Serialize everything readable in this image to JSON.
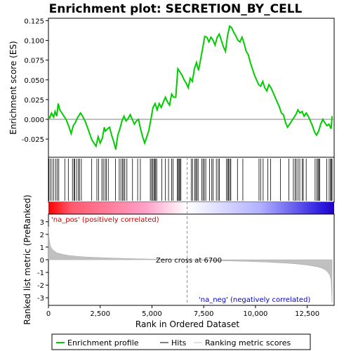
{
  "chart_data": {
    "type": "line",
    "title": "Enrichment plot: SECRETION_BY_CELL",
    "es_panel": {
      "ylabel": "Enrichment score (ES)",
      "ylim": [
        -0.048,
        0.128
      ],
      "yticks": [
        -0.025,
        0.0,
        0.025,
        0.05,
        0.075,
        0.1,
        0.125
      ],
      "ytick_labels": [
        "-0.025",
        "0.000",
        "0.025",
        "0.050",
        "0.075",
        "0.100",
        "0.125"
      ],
      "line_color": "#00cc00",
      "series": [
        {
          "name": "Enrichment profile",
          "x": [
            0,
            60,
            150,
            250,
            320,
            400,
            470,
            550,
            700,
            850,
            1000,
            1100,
            1200,
            1300,
            1400,
            1550,
            1650,
            1800,
            1950,
            2100,
            2200,
            2300,
            2400,
            2500,
            2600,
            2700,
            2750,
            2850,
            2950,
            3050,
            3150,
            3250,
            3350,
            3450,
            3550,
            3650,
            3750,
            3850,
            3950,
            4050,
            4150,
            4250,
            4350,
            4450,
            4550,
            4650,
            4750,
            4850,
            4950,
            5050,
            5150,
            5250,
            5350,
            5450,
            5550,
            5650,
            5750,
            5850,
            5950,
            6050,
            6150,
            6250,
            6350,
            6450,
            6550,
            6650,
            6750,
            6850,
            6950,
            7050,
            7150,
            7250,
            7350,
            7450,
            7550,
            7650,
            7750,
            7850,
            7950,
            8050,
            8150,
            8250,
            8350,
            8450,
            8550,
            8650,
            8750,
            8850,
            8950,
            9050,
            9150,
            9250,
            9350,
            9450,
            9550,
            9650,
            9750,
            9850,
            9950,
            10050,
            10150,
            10250,
            10350,
            10450,
            10550,
            10650,
            10750,
            10850,
            10950,
            11050,
            11150,
            11250,
            11350,
            11450,
            11550,
            11650,
            11750,
            11850,
            11950,
            12050,
            12150,
            12250,
            12350,
            12450,
            12550,
            12650,
            12750,
            12850,
            12950,
            13050,
            13150,
            13250,
            13350,
            13450,
            13550,
            13650,
            13700
          ],
          "y": [
            0.004,
            0.002,
            0.008,
            0.003,
            0.01,
            0.004,
            0.02,
            0.012,
            0.006,
            0.0,
            -0.01,
            -0.018,
            -0.008,
            -0.004,
            0.002,
            0.008,
            0.004,
            -0.004,
            -0.015,
            -0.026,
            -0.03,
            -0.034,
            -0.022,
            -0.03,
            -0.024,
            -0.01,
            -0.015,
            -0.012,
            -0.01,
            -0.02,
            -0.028,
            -0.038,
            -0.02,
            -0.012,
            -0.002,
            0.004,
            -0.002,
            0.001,
            0.006,
            0.0,
            -0.006,
            -0.002,
            0.0,
            -0.012,
            -0.022,
            -0.03,
            -0.022,
            -0.014,
            0.0,
            0.015,
            0.02,
            0.012,
            0.02,
            0.015,
            0.022,
            0.028,
            0.022,
            0.018,
            0.032,
            0.028,
            0.028,
            0.064,
            0.06,
            0.056,
            0.05,
            0.046,
            0.04,
            0.052,
            0.048,
            0.064,
            0.072,
            0.062,
            0.076,
            0.09,
            0.105,
            0.104,
            0.098,
            0.104,
            0.1,
            0.094,
            0.104,
            0.108,
            0.1,
            0.092,
            0.086,
            0.106,
            0.118,
            0.116,
            0.11,
            0.106,
            0.1,
            0.098,
            0.104,
            0.096,
            0.086,
            0.082,
            0.072,
            0.064,
            0.056,
            0.05,
            0.044,
            0.042,
            0.048,
            0.04,
            0.036,
            0.044,
            0.04,
            0.034,
            0.028,
            0.022,
            0.016,
            0.008,
            0.006,
            -0.004,
            -0.01,
            -0.006,
            -0.002,
            0.002,
            0.006,
            0.012,
            0.008,
            0.01,
            0.004,
            0.008,
            0.004,
            -0.002,
            -0.008,
            -0.016,
            -0.02,
            -0.015,
            -0.006,
            0.0,
            -0.004,
            -0.008,
            -0.006,
            -0.012,
            0.004
          ]
        }
      ]
    },
    "hits_panel": {
      "hit_positions": [
        20,
        90,
        170,
        260,
        350,
        430,
        500,
        790,
        960,
        1160,
        1230,
        1270,
        1360,
        1450,
        1500,
        1590,
        2090,
        2340,
        2420,
        2580,
        2650,
        2740,
        2800,
        2890,
        3240,
        3420,
        3500,
        3580,
        3630,
        3690,
        3790,
        4060,
        4310,
        4440,
        4920,
        4980,
        5030,
        5090,
        5140,
        5180,
        5230,
        5480,
        5650,
        5800,
        5950,
        6020,
        6220,
        6270,
        6310,
        6350,
        6400,
        6900,
        6970,
        7070,
        7120,
        7170,
        7230,
        7410,
        7470,
        7530,
        7600,
        7780,
        7890,
        7950,
        8110,
        8200,
        8260,
        8600,
        8660,
        8700,
        8760,
        8810,
        9130,
        9390,
        10170,
        10250,
        10370,
        10600,
        10730,
        11210,
        11610,
        11830,
        11910,
        11970,
        12060,
        12140,
        12260,
        12310,
        12450,
        12880,
        12960,
        13020,
        13060,
        13100,
        13440,
        13560,
        13630,
        13660,
        13700
      ]
    },
    "rank_panel": {
      "ylabel": "Ranked list metric (PreRanked)",
      "xlabel": "Rank in Ordered Dataset",
      "ylim": [
        -3.6,
        3.6
      ],
      "yticks": [
        -3,
        -2,
        -1,
        0,
        1,
        2,
        3
      ],
      "ytick_labels": [
        "-3",
        "-2",
        "-1",
        "0",
        "1",
        "2",
        "3"
      ],
      "x": [
        0,
        20,
        50,
        100,
        200,
        400,
        700,
        1000,
        1500,
        2000,
        3000,
        4000,
        5000,
        6000,
        6700,
        7500,
        8500,
        9500,
        10500,
        11500,
        12000,
        12500,
        13000,
        13200,
        13400,
        13500,
        13600,
        13650,
        13700
      ],
      "y": [
        2.6,
        1.9,
        1.45,
        1.05,
        0.8,
        0.55,
        0.42,
        0.33,
        0.25,
        0.2,
        0.14,
        0.09,
        0.05,
        0.02,
        0.0,
        -0.04,
        -0.09,
        -0.13,
        -0.18,
        -0.27,
        -0.33,
        -0.42,
        -0.56,
        -0.66,
        -0.83,
        -1.0,
        -1.25,
        -1.6,
        -3.4
      ],
      "zero_cross_label": "Zero cross at 6700",
      "zero_cross": 6700,
      "pos_label": "'na_pos' (positively correlated)",
      "neg_label": "'na_neg' (negatively correlated)"
    },
    "xlim": [
      0,
      13800
    ],
    "xticks": [
      0,
      2500,
      5000,
      7500,
      10000,
      12500
    ],
    "xtick_labels": [
      "0",
      "2,500",
      "5,000",
      "7,500",
      "10,000",
      "12,500"
    ],
    "legend": {
      "placement": "bottom",
      "entries": [
        "Enrichment profile",
        "Hits",
        "Ranking metric scores"
      ]
    }
  }
}
